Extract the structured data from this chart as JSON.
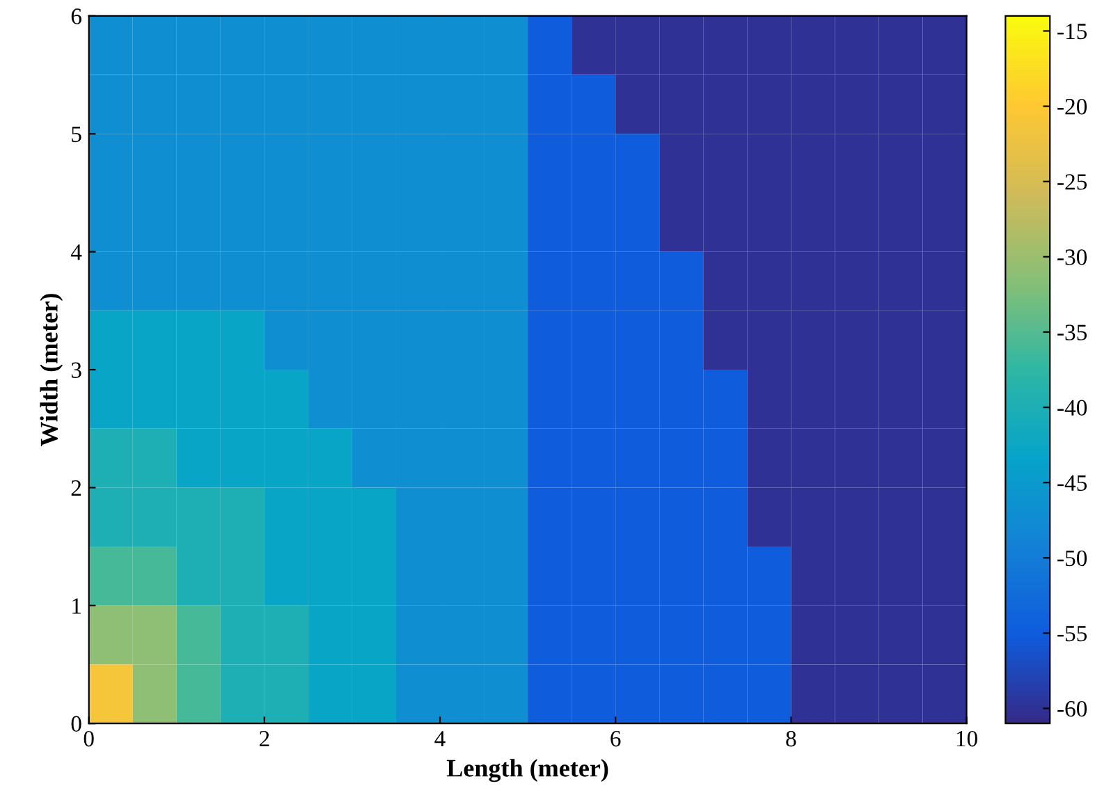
{
  "chart_data": {
    "type": "heatmap",
    "xlabel": "Length (meter)",
    "ylabel": "Width (meter)",
    "xlim": [
      0,
      10
    ],
    "ylim": [
      0,
      6
    ],
    "xticks": [
      0,
      2,
      4,
      6,
      8,
      10
    ],
    "yticks": [
      0,
      1,
      2,
      3,
      4,
      5,
      6
    ],
    "clim": [
      -61,
      -14
    ],
    "cticks": [
      -60,
      -55,
      -50,
      -45,
      -40,
      -35,
      -30,
      -25,
      -20,
      -15
    ],
    "cells": [
      [
        -47,
        -47,
        -47,
        -47,
        -47,
        -47,
        -47,
        -47,
        -47,
        -47,
        -55,
        -60,
        -60,
        -60,
        -60,
        -60,
        -60,
        -60,
        -60,
        -60
      ],
      [
        -47,
        -47,
        -47,
        -47,
        -47,
        -47,
        -47,
        -47,
        -47,
        -47,
        -55,
        -55,
        -60,
        -60,
        -60,
        -60,
        -60,
        -60,
        -60,
        -60
      ],
      [
        -47,
        -47,
        -47,
        -47,
        -47,
        -47,
        -47,
        -47,
        -47,
        -47,
        -55,
        -55,
        -55,
        -60,
        -60,
        -60,
        -60,
        -60,
        -60,
        -60
      ],
      [
        -47,
        -47,
        -47,
        -47,
        -47,
        -47,
        -47,
        -47,
        -47,
        -47,
        -55,
        -55,
        -55,
        -60,
        -60,
        -60,
        -60,
        -60,
        -60,
        -60
      ],
      [
        -47,
        -47,
        -47,
        -47,
        -47,
        -47,
        -47,
        -47,
        -47,
        -47,
        -55,
        -55,
        -55,
        -55,
        -60,
        -60,
        -60,
        -60,
        -60,
        -60
      ],
      [
        -43,
        -43,
        -43,
        -43,
        -47,
        -47,
        -47,
        -47,
        -47,
        -47,
        -55,
        -55,
        -55,
        -55,
        -60,
        -60,
        -60,
        -60,
        -60,
        -60
      ],
      [
        -43,
        -43,
        -43,
        -43,
        -43,
        -47,
        -47,
        -47,
        -47,
        -47,
        -55,
        -55,
        -55,
        -55,
        -55,
        -60,
        -60,
        -60,
        -60,
        -60
      ],
      [
        -40,
        -40,
        -43,
        -43,
        -43,
        -43,
        -47,
        -47,
        -47,
        -47,
        -55,
        -55,
        -55,
        -55,
        -55,
        -60,
        -60,
        -60,
        -60,
        -60
      ],
      [
        -40,
        -40,
        -40,
        -40,
        -43,
        -43,
        -43,
        -47,
        -47,
        -47,
        -55,
        -55,
        -55,
        -55,
        -55,
        -60,
        -60,
        -60,
        -60,
        -60
      ],
      [
        -36,
        -36,
        -40,
        -40,
        -43,
        -43,
        -43,
        -47,
        -47,
        -47,
        -55,
        -55,
        -55,
        -55,
        -55,
        -55,
        -60,
        -60,
        -60,
        -60
      ],
      [
        -31,
        -31,
        -36,
        -40,
        -40,
        -43,
        -43,
        -47,
        -47,
        -47,
        -55,
        -55,
        -55,
        -55,
        -55,
        -55,
        -60,
        -60,
        -60,
        -60
      ],
      [
        -21,
        -31,
        -36,
        -40,
        -40,
        -43,
        -43,
        -47,
        -47,
        -47,
        -55,
        -55,
        -55,
        -55,
        -55,
        -55,
        -60,
        -60,
        -60,
        -60
      ]
    ]
  }
}
